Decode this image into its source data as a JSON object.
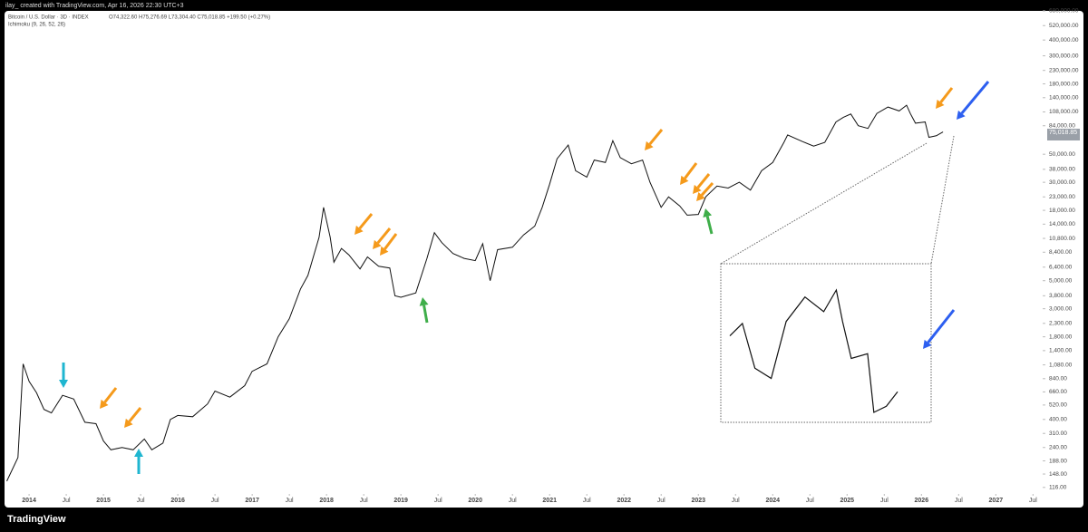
{
  "chart_data": {
    "type": "line",
    "caption": "ilay_ created with TradingView.com, Apr 16, 2026 22:30 UTC+3",
    "title": "Bitcoin / U.S. Dollar · 3D · INDEX",
    "ohlc": "O74,322.60 H75,276.69 L73,304.40 C75,018.85 +199.50 (+0.27%)",
    "indicator": "Ichimoku (9, 26, 52, 26)",
    "brand": "TradingView",
    "last_label": "75,018.85",
    "color": "#111111",
    "log_y": true,
    "grid": false,
    "x": [
      2013.7,
      2013.85,
      2013.92,
      2014.0,
      2014.1,
      2014.2,
      2014.3,
      2014.45,
      2014.6,
      2014.75,
      2014.9,
      2015.0,
      2015.1,
      2015.25,
      2015.4,
      2015.55,
      2015.65,
      2015.8,
      2015.9,
      2016.0,
      2016.2,
      2016.4,
      2016.5,
      2016.7,
      2016.9,
      2017.0,
      2017.2,
      2017.35,
      2017.5,
      2017.65,
      2017.75,
      2017.9,
      2017.96,
      2018.05,
      2018.1,
      2018.2,
      2018.3,
      2018.45,
      2018.55,
      2018.7,
      2018.85,
      2018.92,
      2019.0,
      2019.2,
      2019.35,
      2019.45,
      2019.55,
      2019.7,
      2019.85,
      2020.0,
      2020.1,
      2020.2,
      2020.3,
      2020.5,
      2020.65,
      2020.8,
      2020.9,
      2021.0,
      2021.1,
      2021.25,
      2021.35,
      2021.5,
      2021.6,
      2021.75,
      2021.85,
      2021.95,
      2022.1,
      2022.25,
      2022.35,
      2022.5,
      2022.6,
      2022.75,
      2022.85,
      2023.0,
      2023.1,
      2023.25,
      2023.4,
      2023.55,
      2023.7,
      2023.85,
      2024.0,
      2024.15,
      2024.2,
      2024.4,
      2024.55,
      2024.7,
      2024.85,
      2024.95,
      2025.05,
      2025.15,
      2025.28,
      2025.4,
      2025.55,
      2025.7,
      2025.8,
      2025.85,
      2025.92,
      2026.05,
      2026.1,
      2026.2,
      2026.29
    ],
    "values": [
      130,
      200,
      1100,
      800,
      650,
      480,
      450,
      620,
      580,
      380,
      370,
      270,
      230,
      240,
      230,
      280,
      230,
      260,
      400,
      430,
      420,
      530,
      670,
      600,
      740,
      960,
      1100,
      1800,
      2500,
      4300,
      5500,
      11000,
      19000,
      11000,
      7000,
      9000,
      8000,
      6200,
      7700,
      6500,
      6300,
      3800,
      3700,
      4000,
      7500,
      12000,
      10000,
      8200,
      7500,
      7200,
      9800,
      5000,
      8800,
      9200,
      11500,
      13500,
      19000,
      29000,
      46000,
      59000,
      37000,
      33000,
      45000,
      43000,
      64000,
      47000,
      42000,
      45000,
      30000,
      19000,
      23000,
      19500,
      16500,
      16700,
      23000,
      28000,
      27000,
      30000,
      26000,
      37000,
      43000,
      62000,
      71000,
      63000,
      58000,
      62000,
      90000,
      98000,
      104000,
      84000,
      80000,
      105000,
      118000,
      110000,
      122000,
      105000,
      88000,
      90000,
      68000,
      70000,
      75018.85
    ],
    "xlim": [
      2013.67,
      2027.63
    ],
    "xticks": [
      2014,
      {
        "value": 2014.5,
        "label": "Jul"
      },
      2015,
      {
        "value": 2015.5,
        "label": "Jul"
      },
      2016,
      {
        "value": 2016.5,
        "label": "Jul"
      },
      2017,
      {
        "value": 2017.5,
        "label": "Jul"
      },
      2018,
      {
        "value": 2018.5,
        "label": "Jul"
      },
      2019,
      {
        "value": 2019.5,
        "label": "Jul"
      },
      2020,
      {
        "value": 2020.5,
        "label": "Jul"
      },
      2021,
      {
        "value": 2021.5,
        "label": "Jul"
      },
      2022,
      {
        "value": 2022.5,
        "label": "Jul"
      },
      2023,
      {
        "value": 2023.5,
        "label": "Jul"
      },
      2024,
      {
        "value": 2024.5,
        "label": "Jul"
      },
      2025,
      {
        "value": 2025.5,
        "label": "Jul"
      },
      2026,
      {
        "value": 2026.5,
        "label": "Jul"
      },
      2027,
      {
        "value": 2027.5,
        "label": "Jul"
      }
    ],
    "ylim": [
      103,
      680000
    ],
    "yticks": [
      {
        "value": 680000,
        "label": "680,000.00"
      },
      {
        "value": 520000,
        "label": "520,000.00"
      },
      {
        "value": 400000,
        "label": "400,000.00"
      },
      {
        "value": 300000,
        "label": "300,000.00"
      },
      {
        "value": 230000,
        "label": "230,000.00"
      },
      {
        "value": 180000,
        "label": "180,000.00"
      },
      {
        "value": 140000,
        "label": "140,000.00"
      },
      {
        "value": 108000,
        "label": "108,000.00"
      },
      {
        "value": 84000,
        "label": "84,000.00"
      },
      {
        "value": 50000,
        "label": "50,000.00"
      },
      {
        "value": 38000,
        "label": "38,000.00"
      },
      {
        "value": 30000,
        "label": "30,000.00"
      },
      {
        "value": 23000,
        "label": "23,000.00"
      },
      {
        "value": 18000,
        "label": "18,000.00"
      },
      {
        "value": 14000,
        "label": "14,000.00"
      },
      {
        "value": 10800,
        "label": "10,800.00"
      },
      {
        "value": 8400,
        "label": "8,400.00"
      },
      {
        "value": 6400,
        "label": "6,400.00"
      },
      {
        "value": 5000,
        "label": "5,000.00"
      },
      {
        "value": 3800,
        "label": "3,800.00"
      },
      {
        "value": 3000,
        "label": "3,000.00"
      },
      {
        "value": 2300,
        "label": "2,300.00"
      },
      {
        "value": 1800,
        "label": "1,800.00"
      },
      {
        "value": 1400,
        "label": "1,400.00"
      },
      {
        "value": 1080,
        "label": "1,080.00"
      },
      {
        "value": 840,
        "label": "840.00"
      },
      {
        "value": 660,
        "label": "660.00"
      },
      {
        "value": 520,
        "label": "520.00"
      },
      {
        "value": 400,
        "label": "400.00"
      },
      {
        "value": 310,
        "label": "310.00"
      },
      {
        "value": 240,
        "label": "240.00"
      },
      {
        "value": 188,
        "label": "188.00"
      },
      {
        "value": 148,
        "label": "148.00"
      },
      {
        "value": 116,
        "label": "116.00"
      }
    ]
  }
}
